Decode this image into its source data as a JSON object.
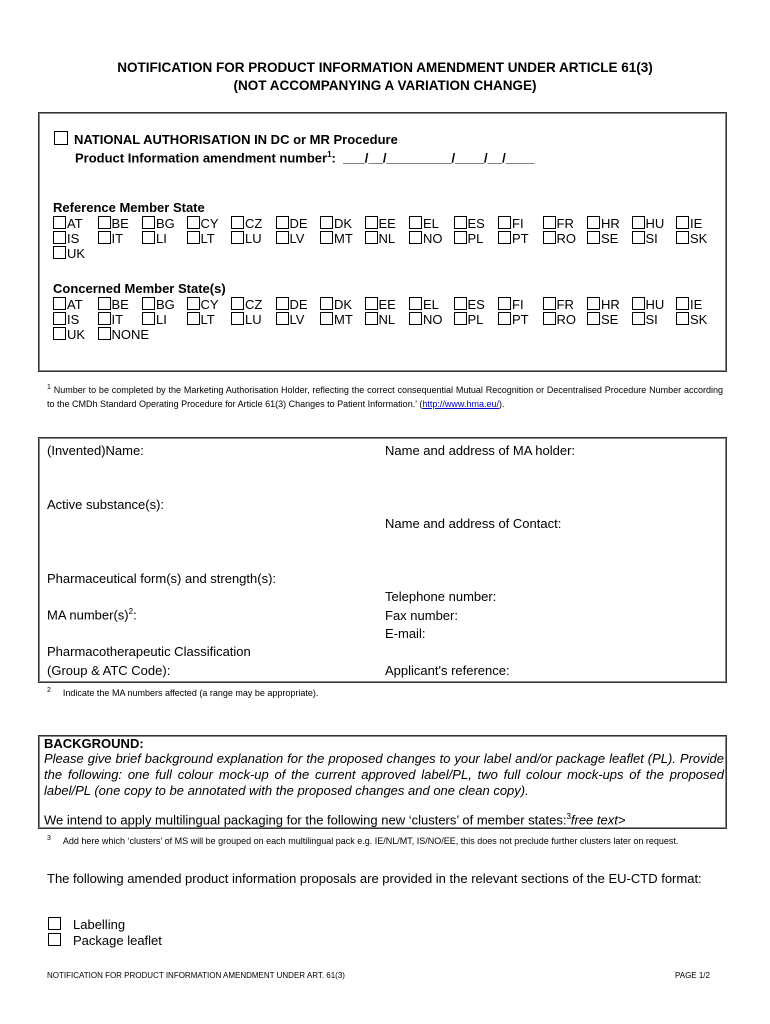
{
  "title": {
    "line1": "NOTIFICATION FOR PRODUCT INFORMATION AMENDMENT UNDER ARTICLE 61(3)",
    "line2": "(NOT ACCOMPANYING A VARIATION CHANGE)"
  },
  "procedure": {
    "national_label": "NATIONAL AUTHORISATION IN DC or MR Procedure",
    "amendment_label": "Product Information amendment number",
    "amendment_sup": "1",
    "amendment_value": ":  ___/__/_________/____/__/____"
  },
  "reference": {
    "heading": "Reference Member State",
    "states": [
      "AT",
      "BE",
      "BG",
      "CY",
      "CZ",
      "DE",
      "DK",
      "EE",
      "EL",
      "ES",
      "FI",
      "FR",
      "HR",
      "HU",
      "IE",
      "IS",
      "IT",
      "LI",
      "LT",
      "LU",
      "LV",
      "MT",
      "NL",
      "NO",
      "PL",
      "PT",
      "RO",
      "SE",
      "SI",
      "SK",
      "UK"
    ]
  },
  "concerned": {
    "heading": "Concerned Member State(s)",
    "states": [
      "AT",
      "BE",
      "BG",
      "CY",
      "CZ",
      "DE",
      "DK",
      "EE",
      "EL",
      "ES",
      "FI",
      "FR",
      "HR",
      "HU",
      "IE",
      "IS",
      "IT",
      "LI",
      "LT",
      "LU",
      "LV",
      "MT",
      "NL",
      "NO",
      "PL",
      "PT",
      "RO",
      "SE",
      "SI",
      "SK",
      "UK",
      "NONE"
    ]
  },
  "footnote1": {
    "num": "1",
    "text": " Number to be completed by the Marketing Authorisation Holder, reflecting the correct consequential Mutual Recognition or Decentralised Procedure Number according to the CMDh Standard Operating Procedure for Article 61(3) Changes to Patient Information.' (",
    "link": "http://www.hma.eu/",
    "end": ")."
  },
  "product": {
    "invented_name": "(Invented)Name:",
    "active_substance": "Active substance(s):",
    "pharm_form": "Pharmaceutical form(s) and strength(s):",
    "ma_number": "MA number(s)",
    "ma_sup": "2",
    "ma_colon": ":",
    "pharmaco1": "Pharmacotherapeutic Classification",
    "pharmaco2": "(Group & ATC Code):",
    "ma_holder": "Name and address of MA holder:",
    "contact": "Name and address of Contact:",
    "telephone": "Telephone number:",
    "fax": "Fax number:",
    "email": "E-mail:",
    "applicant_ref": "Applicant's reference:"
  },
  "footnote2": {
    "num": "2",
    "text": "Indicate the MA numbers affected (a range may be appropriate)."
  },
  "background": {
    "heading": "BACKGROUND:",
    "instructions": "Please give brief background explanation for the proposed changes to your label and/or package leaflet (PL).  Provide the following:  one full colour mock-up of the current approved label/PL, two full colour mock-ups of the proposed label/PL (one copy to be annotated with the proposed changes and one clean copy).",
    "multilingual": "We intend to apply multilingual packaging for the following new ‘clusters’ of member states:",
    "multilingual_sup": "3",
    "free_text": "free text>"
  },
  "footnote3": {
    "num": "3",
    "text": "Add here which ‘clusters’ of MS will be grouped on each multilingual pack e.g. IE/NL/MT, IS/NO/EE, this does not preclude further clusters later on request."
  },
  "proposals": {
    "text": "The following amended product information proposals are provided in the relevant sections of the EU-CTD format:",
    "options": [
      "Labelling",
      "Package leaflet"
    ]
  },
  "footer": {
    "left": "NOTIFICATION FOR PRODUCT INFORMATION AMENDMENT UNDER ART. 61(3)",
    "right": "PAGE 1/2"
  }
}
